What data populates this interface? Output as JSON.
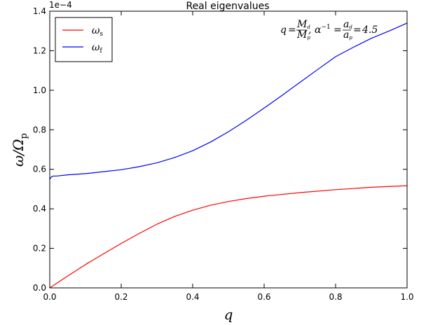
{
  "chart_data": {
    "type": "line",
    "title": "Real eigenvalues",
    "xlabel": "q",
    "ylabel": "ω/Ωp",
    "ylabel_base": "ω/Ω",
    "ylabel_sub": "p",
    "offset_text": "1e−4",
    "xlim": [
      0.0,
      1.0
    ],
    "ylim": [
      0.0,
      1.4
    ],
    "x_ticks": [
      "0.0",
      "0.2",
      "0.4",
      "0.6",
      "0.8",
      "1.0"
    ],
    "y_ticks": [
      "0.0",
      "0.2",
      "0.4",
      "0.6",
      "0.8",
      "1.0",
      "1.2",
      "1.4"
    ],
    "grid": false,
    "legend_position": "top-left",
    "annotation": "q = Md / Mp ,  α⁻¹ = ad / ap = 4.5",
    "annotation_value": "4.5",
    "series": [
      {
        "name": "ωs",
        "name_base": "ω",
        "name_sub": "s",
        "color": "#ff0000",
        "x": [
          0.0,
          0.01,
          0.05,
          0.1,
          0.15,
          0.2,
          0.25,
          0.3,
          0.35,
          0.4,
          0.45,
          0.5,
          0.55,
          0.6,
          0.7,
          0.8,
          0.9,
          1.0
        ],
        "y": [
          0.0,
          0.012,
          0.06,
          0.118,
          0.172,
          0.225,
          0.275,
          0.322,
          0.362,
          0.393,
          0.418,
          0.437,
          0.452,
          0.464,
          0.482,
          0.497,
          0.509,
          0.517
        ]
      },
      {
        "name": "ωf",
        "name_base": "ω",
        "name_sub": "f",
        "color": "#0000ff",
        "x": [
          0.0,
          0.005,
          0.01,
          0.02,
          0.05,
          0.1,
          0.15,
          0.2,
          0.25,
          0.3,
          0.35,
          0.4,
          0.45,
          0.5,
          0.55,
          0.6,
          0.65,
          0.7,
          0.75,
          0.8,
          0.85,
          0.9,
          0.95,
          1.0
        ],
        "y": [
          0.55,
          0.562,
          0.566,
          0.566,
          0.572,
          0.578,
          0.588,
          0.598,
          0.613,
          0.633,
          0.66,
          0.694,
          0.738,
          0.79,
          0.848,
          0.91,
          0.974,
          1.04,
          1.105,
          1.17,
          1.218,
          1.263,
          1.3,
          1.34
        ]
      }
    ]
  }
}
